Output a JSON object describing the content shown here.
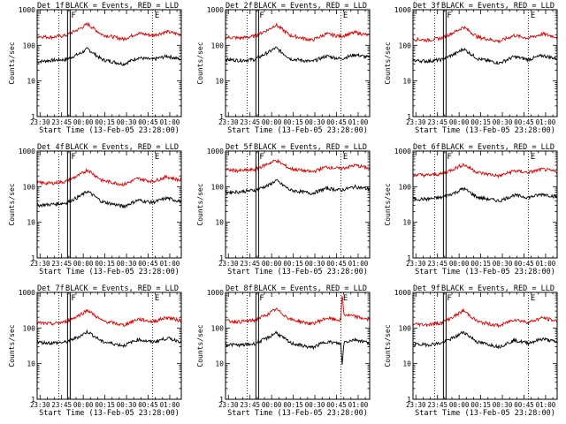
{
  "colors": {
    "events": "#000000",
    "lld": "#dd0000",
    "axis": "#000000",
    "marker": "#000000"
  },
  "chart_data": {
    "type": "line",
    "yscale": "log",
    "ylim": [
      1,
      1000
    ],
    "ytick_values": [
      1,
      10,
      100,
      1000
    ],
    "ytick_labels": [
      "1",
      "10",
      "100",
      "1000"
    ],
    "ylabel": "Counts/sec",
    "xlabel": "Start Time (13-Feb-05 23:28:00)",
    "x_unit": "minutes after 23:28:00",
    "xlim": [
      0,
      100
    ],
    "xtick_minutes": [
      2,
      17,
      32,
      47,
      62,
      77,
      92
    ],
    "xtick_labels": [
      "23:30",
      "23:45",
      "00:00",
      "00:15",
      "00:30",
      "00:45",
      "01:00"
    ],
    "marker_lines": [
      {
        "label": "",
        "minute": 15,
        "style": "dotted"
      },
      {
        "label": "F",
        "minute": 22,
        "style": "solid-double"
      },
      {
        "label": "E",
        "minute": 80,
        "style": "dotted"
      }
    ],
    "legend_text": "BLACK = Events, RED = LLD",
    "panels": [
      {
        "title": "Det 1f",
        "series": [
          {
            "name": "Events",
            "color": "#000000",
            "x": [
              0,
              10,
              20,
              30,
              35,
              45,
              60,
              70,
              80,
              90,
              100
            ],
            "values": [
              35,
              38,
              40,
              60,
              80,
              40,
              30,
              45,
              40,
              50,
              40
            ]
          },
          {
            "name": "LLD",
            "color": "#dd0000",
            "x": [
              0,
              10,
              20,
              30,
              35,
              45,
              60,
              70,
              80,
              90,
              100
            ],
            "values": [
              180,
              170,
              190,
              300,
              400,
              200,
              150,
              220,
              190,
              240,
              200
            ]
          }
        ]
      },
      {
        "title": "Det 2f",
        "series": [
          {
            "name": "Events",
            "color": "#000000",
            "x": [
              0,
              10,
              20,
              30,
              35,
              45,
              60,
              70,
              80,
              90,
              100
            ],
            "values": [
              40,
              38,
              40,
              65,
              85,
              42,
              35,
              50,
              42,
              55,
              45
            ]
          },
          {
            "name": "LLD",
            "color": "#dd0000",
            "x": [
              0,
              10,
              20,
              30,
              35,
              45,
              60,
              70,
              80,
              90,
              100
            ],
            "values": [
              170,
              160,
              180,
              280,
              380,
              190,
              140,
              210,
              180,
              230,
              190
            ]
          }
        ]
      },
      {
        "title": "Det 3f",
        "series": [
          {
            "name": "Events",
            "color": "#000000",
            "x": [
              0,
              10,
              20,
              30,
              35,
              45,
              60,
              70,
              80,
              90,
              100
            ],
            "values": [
              38,
              36,
              40,
              60,
              80,
              42,
              32,
              48,
              40,
              52,
              42
            ]
          },
          {
            "name": "LLD",
            "color": "#dd0000",
            "x": [
              0,
              10,
              20,
              30,
              35,
              45,
              60,
              70,
              80,
              90,
              100
            ],
            "values": [
              150,
              140,
              160,
              250,
              330,
              170,
              130,
              190,
              160,
              210,
              170
            ]
          }
        ]
      },
      {
        "title": "Det 4f",
        "series": [
          {
            "name": "Events",
            "color": "#000000",
            "x": [
              0,
              10,
              20,
              30,
              35,
              45,
              60,
              70,
              80,
              90,
              100
            ],
            "values": [
              30,
              32,
              35,
              55,
              75,
              38,
              28,
              42,
              36,
              48,
              38
            ]
          },
          {
            "name": "LLD",
            "color": "#dd0000",
            "x": [
              0,
              10,
              20,
              30,
              35,
              45,
              60,
              70,
              80,
              90,
              100
            ],
            "values": [
              130,
              125,
              140,
              220,
              300,
              150,
              115,
              170,
              140,
              190,
              150
            ]
          }
        ]
      },
      {
        "title": "Det 5f",
        "series": [
          {
            "name": "Events",
            "color": "#000000",
            "x": [
              0,
              10,
              20,
              30,
              35,
              45,
              60,
              70,
              80,
              90,
              100
            ],
            "values": [
              70,
              72,
              80,
              110,
              150,
              80,
              65,
              90,
              80,
              100,
              85
            ]
          },
          {
            "name": "LLD",
            "color": "#dd0000",
            "x": [
              0,
              10,
              20,
              30,
              35,
              45,
              60,
              70,
              80,
              90,
              100
            ],
            "values": [
              300,
              280,
              300,
              450,
              550,
              320,
              260,
              360,
              320,
              400,
              330
            ]
          }
        ]
      },
      {
        "title": "Det 6f",
        "series": [
          {
            "name": "Events",
            "color": "#000000",
            "x": [
              0,
              10,
              20,
              30,
              35,
              45,
              60,
              70,
              80,
              90,
              100
            ],
            "values": [
              45,
              45,
              50,
              70,
              90,
              50,
              40,
              58,
              50,
              62,
              52
            ]
          },
          {
            "name": "LLD",
            "color": "#dd0000",
            "x": [
              0,
              10,
              20,
              30,
              35,
              45,
              60,
              70,
              80,
              90,
              100
            ],
            "values": [
              220,
              210,
              230,
              340,
              420,
              250,
              200,
              280,
              250,
              310,
              260
            ]
          }
        ]
      },
      {
        "title": "Det 7f",
        "series": [
          {
            "name": "Events",
            "color": "#000000",
            "x": [
              0,
              10,
              20,
              30,
              35,
              45,
              60,
              70,
              80,
              90,
              100
            ],
            "values": [
              40,
              38,
              40,
              60,
              80,
              42,
              32,
              48,
              40,
              52,
              42
            ]
          },
          {
            "name": "LLD",
            "color": "#dd0000",
            "x": [
              0,
              10,
              20,
              30,
              35,
              45,
              60,
              70,
              80,
              90,
              100
            ],
            "values": [
              140,
              130,
              150,
              240,
              320,
              160,
              120,
              180,
              150,
              200,
              160
            ]
          }
        ]
      },
      {
        "title": "Det 8f",
        "series": [
          {
            "name": "Events",
            "color": "#000000",
            "x": [
              0,
              10,
              20,
              30,
              35,
              45,
              60,
              70,
              80,
              81,
              82,
              90,
              100
            ],
            "values": [
              35,
              33,
              36,
              55,
              75,
              38,
              28,
              42,
              36,
              8,
              40,
              48,
              38
            ]
          },
          {
            "name": "LLD",
            "color": "#dd0000",
            "x": [
              0,
              10,
              20,
              30,
              35,
              45,
              60,
              70,
              80,
              81,
              82,
              90,
              100
            ],
            "values": [
              160,
              150,
              165,
              250,
              340,
              175,
              130,
              190,
              165,
              1000,
              240,
              210,
              170
            ]
          }
        ]
      },
      {
        "title": "Det 9f",
        "series": [
          {
            "name": "Events",
            "color": "#000000",
            "x": [
              0,
              10,
              20,
              30,
              35,
              45,
              60,
              70,
              80,
              90,
              100
            ],
            "values": [
              35,
              34,
              38,
              58,
              78,
              40,
              30,
              45,
              38,
              50,
              40
            ]
          },
          {
            "name": "LLD",
            "color": "#dd0000",
            "x": [
              0,
              10,
              20,
              30,
              35,
              45,
              60,
              70,
              80,
              90,
              100
            ],
            "values": [
              130,
              125,
              140,
              230,
              310,
              150,
              115,
              175,
              145,
              195,
              155
            ]
          }
        ]
      }
    ]
  }
}
